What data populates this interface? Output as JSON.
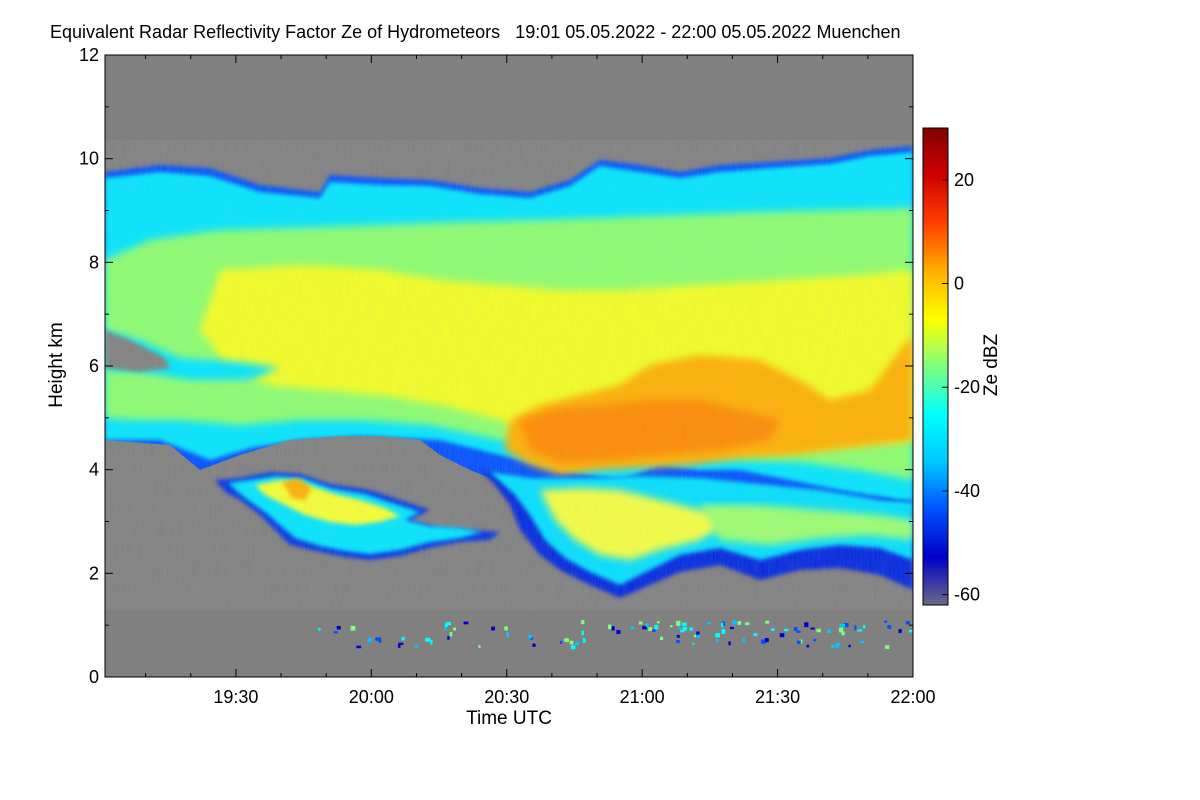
{
  "chart_data": {
    "type": "heatmap",
    "title": "Equivalent Radar Reflectivity Factor Ze of Hydrometeors   19:01 05.05.2022 - 22:00 05.05.2022 Muenchen",
    "xlabel": "Time UTC",
    "ylabel": "Height km",
    "colorbar_label": "Ze dBZ",
    "x_range": [
      "19:01",
      "22:00"
    ],
    "x_ticks": [
      "19:30",
      "20:00",
      "20:30",
      "21:00",
      "21:30",
      "22:00"
    ],
    "y_range": [
      0,
      12
    ],
    "y_ticks": [
      "0",
      "2",
      "4",
      "6",
      "8",
      "10",
      "12"
    ],
    "colorbar_range": [
      -62,
      30
    ],
    "colorbar_ticks": [
      "20",
      "0",
      "-20",
      "-40",
      "-60"
    ],
    "colormap": [
      "#6a6a8a",
      "#0000c8",
      "#0050ff",
      "#00c8ff",
      "#00ffff",
      "#7fff7f",
      "#ffff00",
      "#ffb000",
      "#ff4000",
      "#d00000",
      "#800000"
    ],
    "background_color": "#808080",
    "features": [
      {
        "desc": "upper cloud layer",
        "time": [
          "19:01",
          "22:00"
        ],
        "height_km": [
          4.5,
          10.2
        ],
        "ze_dbz": [
          -30,
          -5
        ]
      },
      {
        "desc": "core",
        "time": [
          "20:35",
          "21:20"
        ],
        "height_km": [
          4.0,
          5.5
        ],
        "ze_dbz": [
          5,
          10
        ]
      },
      {
        "desc": "lower layer",
        "time": [
          "19:25",
          "20:30"
        ],
        "height_km": [
          2.3,
          3.9
        ],
        "ze_dbz": [
          -30,
          5
        ]
      },
      {
        "desc": "precipitation below cloud",
        "time": [
          "20:30",
          "22:00"
        ],
        "height_km": [
          1.7,
          4.0
        ],
        "ze_dbz": [
          -45,
          -5
        ]
      }
    ]
  }
}
